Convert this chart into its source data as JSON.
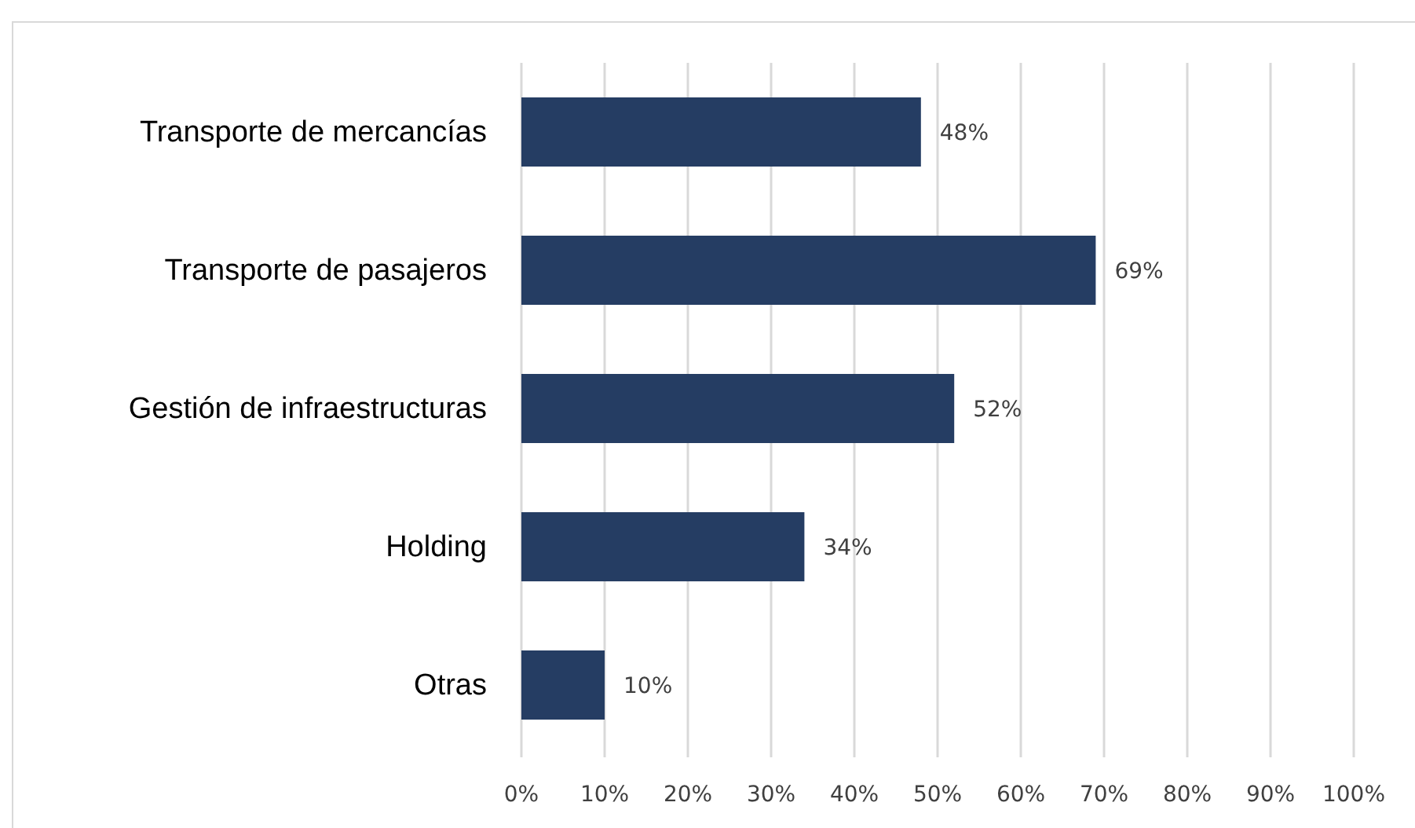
{
  "chart_data": {
    "type": "bar",
    "orientation": "horizontal",
    "categories": [
      "Transporte de mercancías",
      "Transporte de pasajeros",
      "Gestión de infraestructuras",
      "Holding",
      "Otras"
    ],
    "values": [
      48,
      69,
      52,
      34,
      10
    ],
    "value_labels": [
      "48%",
      "69%",
      "52%",
      "34%",
      "10%"
    ],
    "color": "#253d63",
    "xlim": [
      0,
      100
    ],
    "xticks": [
      {
        "value": 0,
        "label": "0%"
      },
      {
        "value": 10,
        "label": "10%"
      },
      {
        "value": 20,
        "label": "20%"
      },
      {
        "value": 30,
        "label": "30%"
      },
      {
        "value": 40,
        "label": "40%"
      },
      {
        "value": 50,
        "label": "50%"
      },
      {
        "value": 60,
        "label": "60%"
      },
      {
        "value": 70,
        "label": "70%"
      },
      {
        "value": 80,
        "label": "80%"
      },
      {
        "value": 90,
        "label": "90%"
      },
      {
        "value": 100,
        "label": "100%"
      }
    ],
    "grid": "x"
  }
}
